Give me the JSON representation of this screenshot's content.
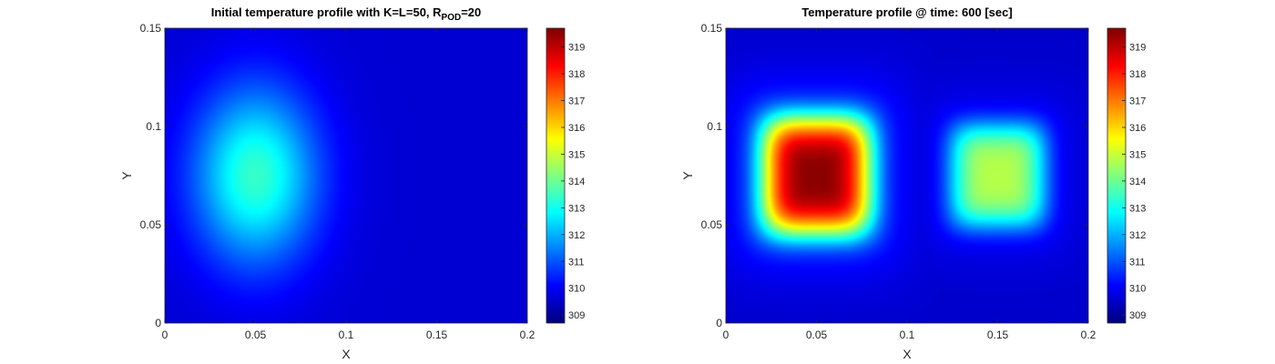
{
  "chart_data": [
    {
      "type": "heatmap",
      "title": "Initial temperature profile with K=L=50, R",
      "title_subscript": "POD",
      "title_suffix": "=20",
      "xlabel": "X",
      "ylabel": "Y",
      "xlim": [
        0,
        0.2
      ],
      "ylim": [
        0,
        0.15
      ],
      "xticks": [
        "0",
        "0.05",
        "0.1",
        "0.15",
        "0.2"
      ],
      "yticks": [
        "0",
        "0.05",
        "0.1",
        "0.15"
      ],
      "colormap": "jet",
      "clim": [
        308.7,
        319.7
      ],
      "colorbar_ticks": [
        309,
        310,
        311,
        312,
        313,
        314,
        315,
        316,
        317,
        318,
        319
      ],
      "background_value": 309.6,
      "blobs": [
        {
          "x": 0.05,
          "y": 0.075,
          "peak": 313.4,
          "rx": 0.036,
          "ry": 0.047,
          "shape": "gaussian"
        }
      ]
    },
    {
      "type": "heatmap",
      "title": "Temperature profile @ time: 600 [sec]",
      "xlabel": "X",
      "ylabel": "Y",
      "xlim": [
        0,
        0.2
      ],
      "ylim": [
        0,
        0.15
      ],
      "xticks": [
        "0",
        "0.05",
        "0.1",
        "0.15",
        "0.2"
      ],
      "yticks": [
        "0",
        "0.05",
        "0.1",
        "0.15"
      ],
      "colormap": "jet",
      "clim": [
        308.7,
        319.7
      ],
      "colorbar_ticks": [
        309,
        310,
        311,
        312,
        313,
        314,
        315,
        316,
        317,
        318,
        319
      ],
      "background_value": 309.5,
      "blobs": [
        {
          "x": 0.05,
          "y": 0.075,
          "peak": 319.6,
          "rx": 0.03,
          "ry": 0.03,
          "shape": "square"
        },
        {
          "x": 0.15,
          "y": 0.075,
          "peak": 314.8,
          "rx": 0.026,
          "ry": 0.026,
          "shape": "square"
        }
      ]
    }
  ]
}
